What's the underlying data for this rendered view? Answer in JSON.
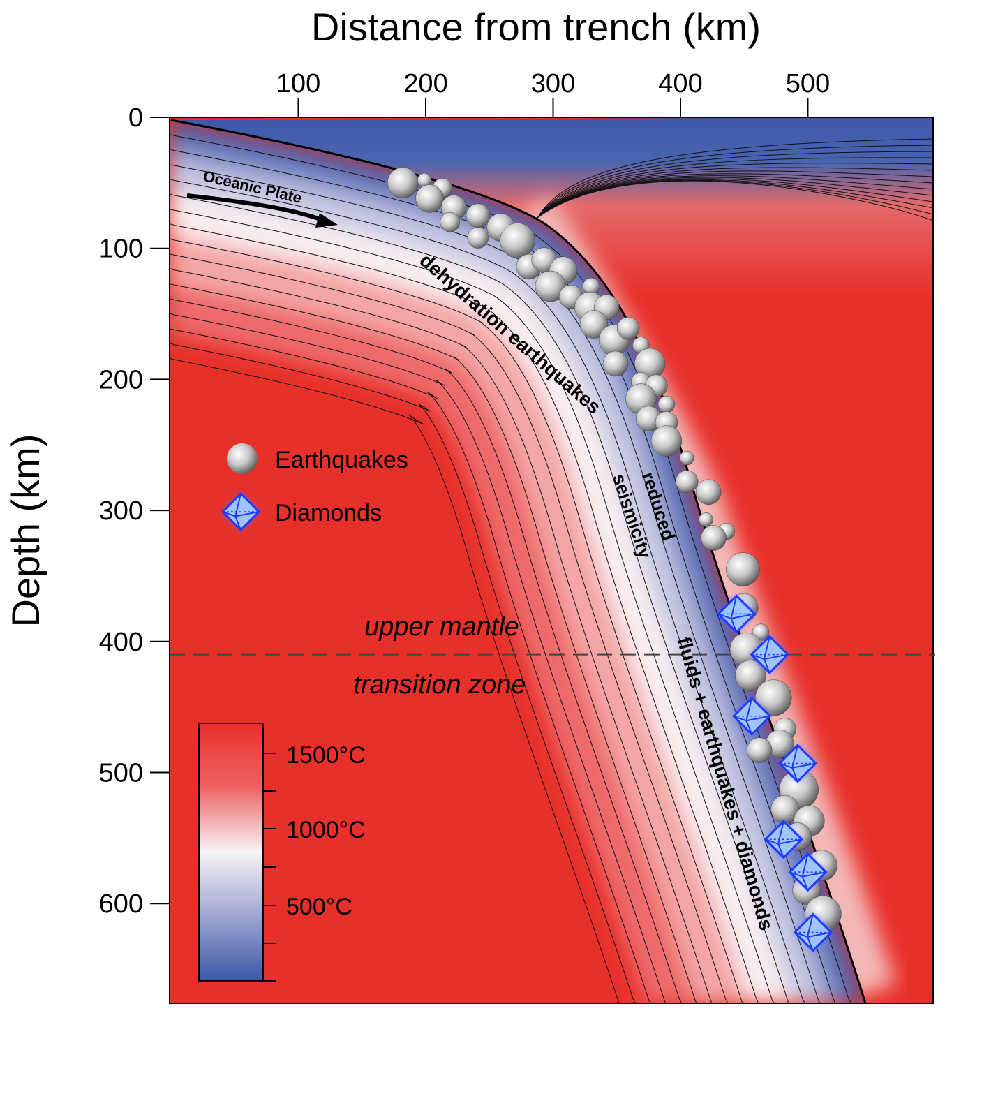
{
  "chart_data": {
    "type": "scatter",
    "title": "",
    "xlabel": "Distance from trench (km)",
    "ylabel": "Depth (km)",
    "xlim": [
      0,
      600
    ],
    "ylim": [
      680,
      0
    ],
    "xticks": [
      100,
      200,
      300,
      400,
      500
    ],
    "yticks": [
      0,
      100,
      200,
      300,
      400,
      500,
      600
    ],
    "legend": [
      {
        "label": "Earthquakes",
        "marker": "sphere"
      },
      {
        "label": "Diamonds",
        "marker": "octahedron"
      }
    ],
    "annotations": {
      "oceanic_plate": "Oceanic Plate",
      "dehydration": "dehydration earthquakes",
      "reduced": "reduced",
      "seismicity": "seismicity",
      "fluids": "fluids + earthquakes + diamonds",
      "upper_mantle": "upper mantle",
      "transition_zone": "transition zone"
    },
    "boundary_depth_km": 410,
    "colorbar": {
      "labels": [
        "1500°C",
        "1000°C",
        "500°C"
      ],
      "colors": {
        "hot": "#e8302b",
        "mid": "#f8f4f6",
        "cold": "#3c58a8"
      }
    },
    "earthquakes": [
      [
        182,
        50,
        22
      ],
      [
        199,
        48,
        10
      ],
      [
        213,
        54,
        14
      ],
      [
        203,
        62,
        20
      ],
      [
        222,
        69,
        18
      ],
      [
        219,
        80,
        14
      ],
      [
        241,
        75,
        17
      ],
      [
        241,
        92,
        15
      ],
      [
        259,
        84,
        20
      ],
      [
        272,
        94,
        25
      ],
      [
        281,
        114,
        18
      ],
      [
        293,
        109,
        18
      ],
      [
        308,
        117,
        20
      ],
      [
        298,
        129,
        22
      ],
      [
        314,
        137,
        17
      ],
      [
        330,
        129,
        12
      ],
      [
        329,
        145,
        22
      ],
      [
        342,
        145,
        18
      ],
      [
        332,
        158,
        20
      ],
      [
        348,
        170,
        22
      ],
      [
        359,
        161,
        16
      ],
      [
        349,
        188,
        18
      ],
      [
        369,
        174,
        12
      ],
      [
        376,
        188,
        22
      ],
      [
        369,
        202,
        14
      ],
      [
        381,
        205,
        16
      ],
      [
        369,
        215,
        22
      ],
      [
        389,
        219,
        12
      ],
      [
        375,
        230,
        18
      ],
      [
        389,
        233,
        16
      ],
      [
        389,
        247,
        22
      ],
      [
        405,
        260,
        10
      ],
      [
        405,
        278,
        16
      ],
      [
        422,
        286,
        18
      ],
      [
        420,
        307,
        10
      ],
      [
        436,
        316,
        12
      ],
      [
        426,
        321,
        18
      ],
      [
        449,
        345,
        24
      ],
      [
        450,
        374,
        20
      ],
      [
        463,
        393,
        12
      ],
      [
        452,
        406,
        24
      ],
      [
        455,
        426,
        22
      ],
      [
        473,
        443,
        26
      ],
      [
        482,
        467,
        16
      ],
      [
        478,
        478,
        20
      ],
      [
        462,
        483,
        18
      ],
      [
        493,
        513,
        28
      ],
      [
        482,
        528,
        20
      ],
      [
        501,
        537,
        22
      ],
      [
        492,
        549,
        20
      ],
      [
        511,
        571,
        22
      ],
      [
        499,
        590,
        20
      ],
      [
        512,
        608,
        26
      ]
    ],
    "diamonds": [
      [
        444,
        379
      ],
      [
        470,
        410
      ],
      [
        456,
        457
      ],
      [
        492,
        493
      ],
      [
        481,
        551
      ],
      [
        500,
        576
      ],
      [
        504,
        622
      ]
    ]
  }
}
